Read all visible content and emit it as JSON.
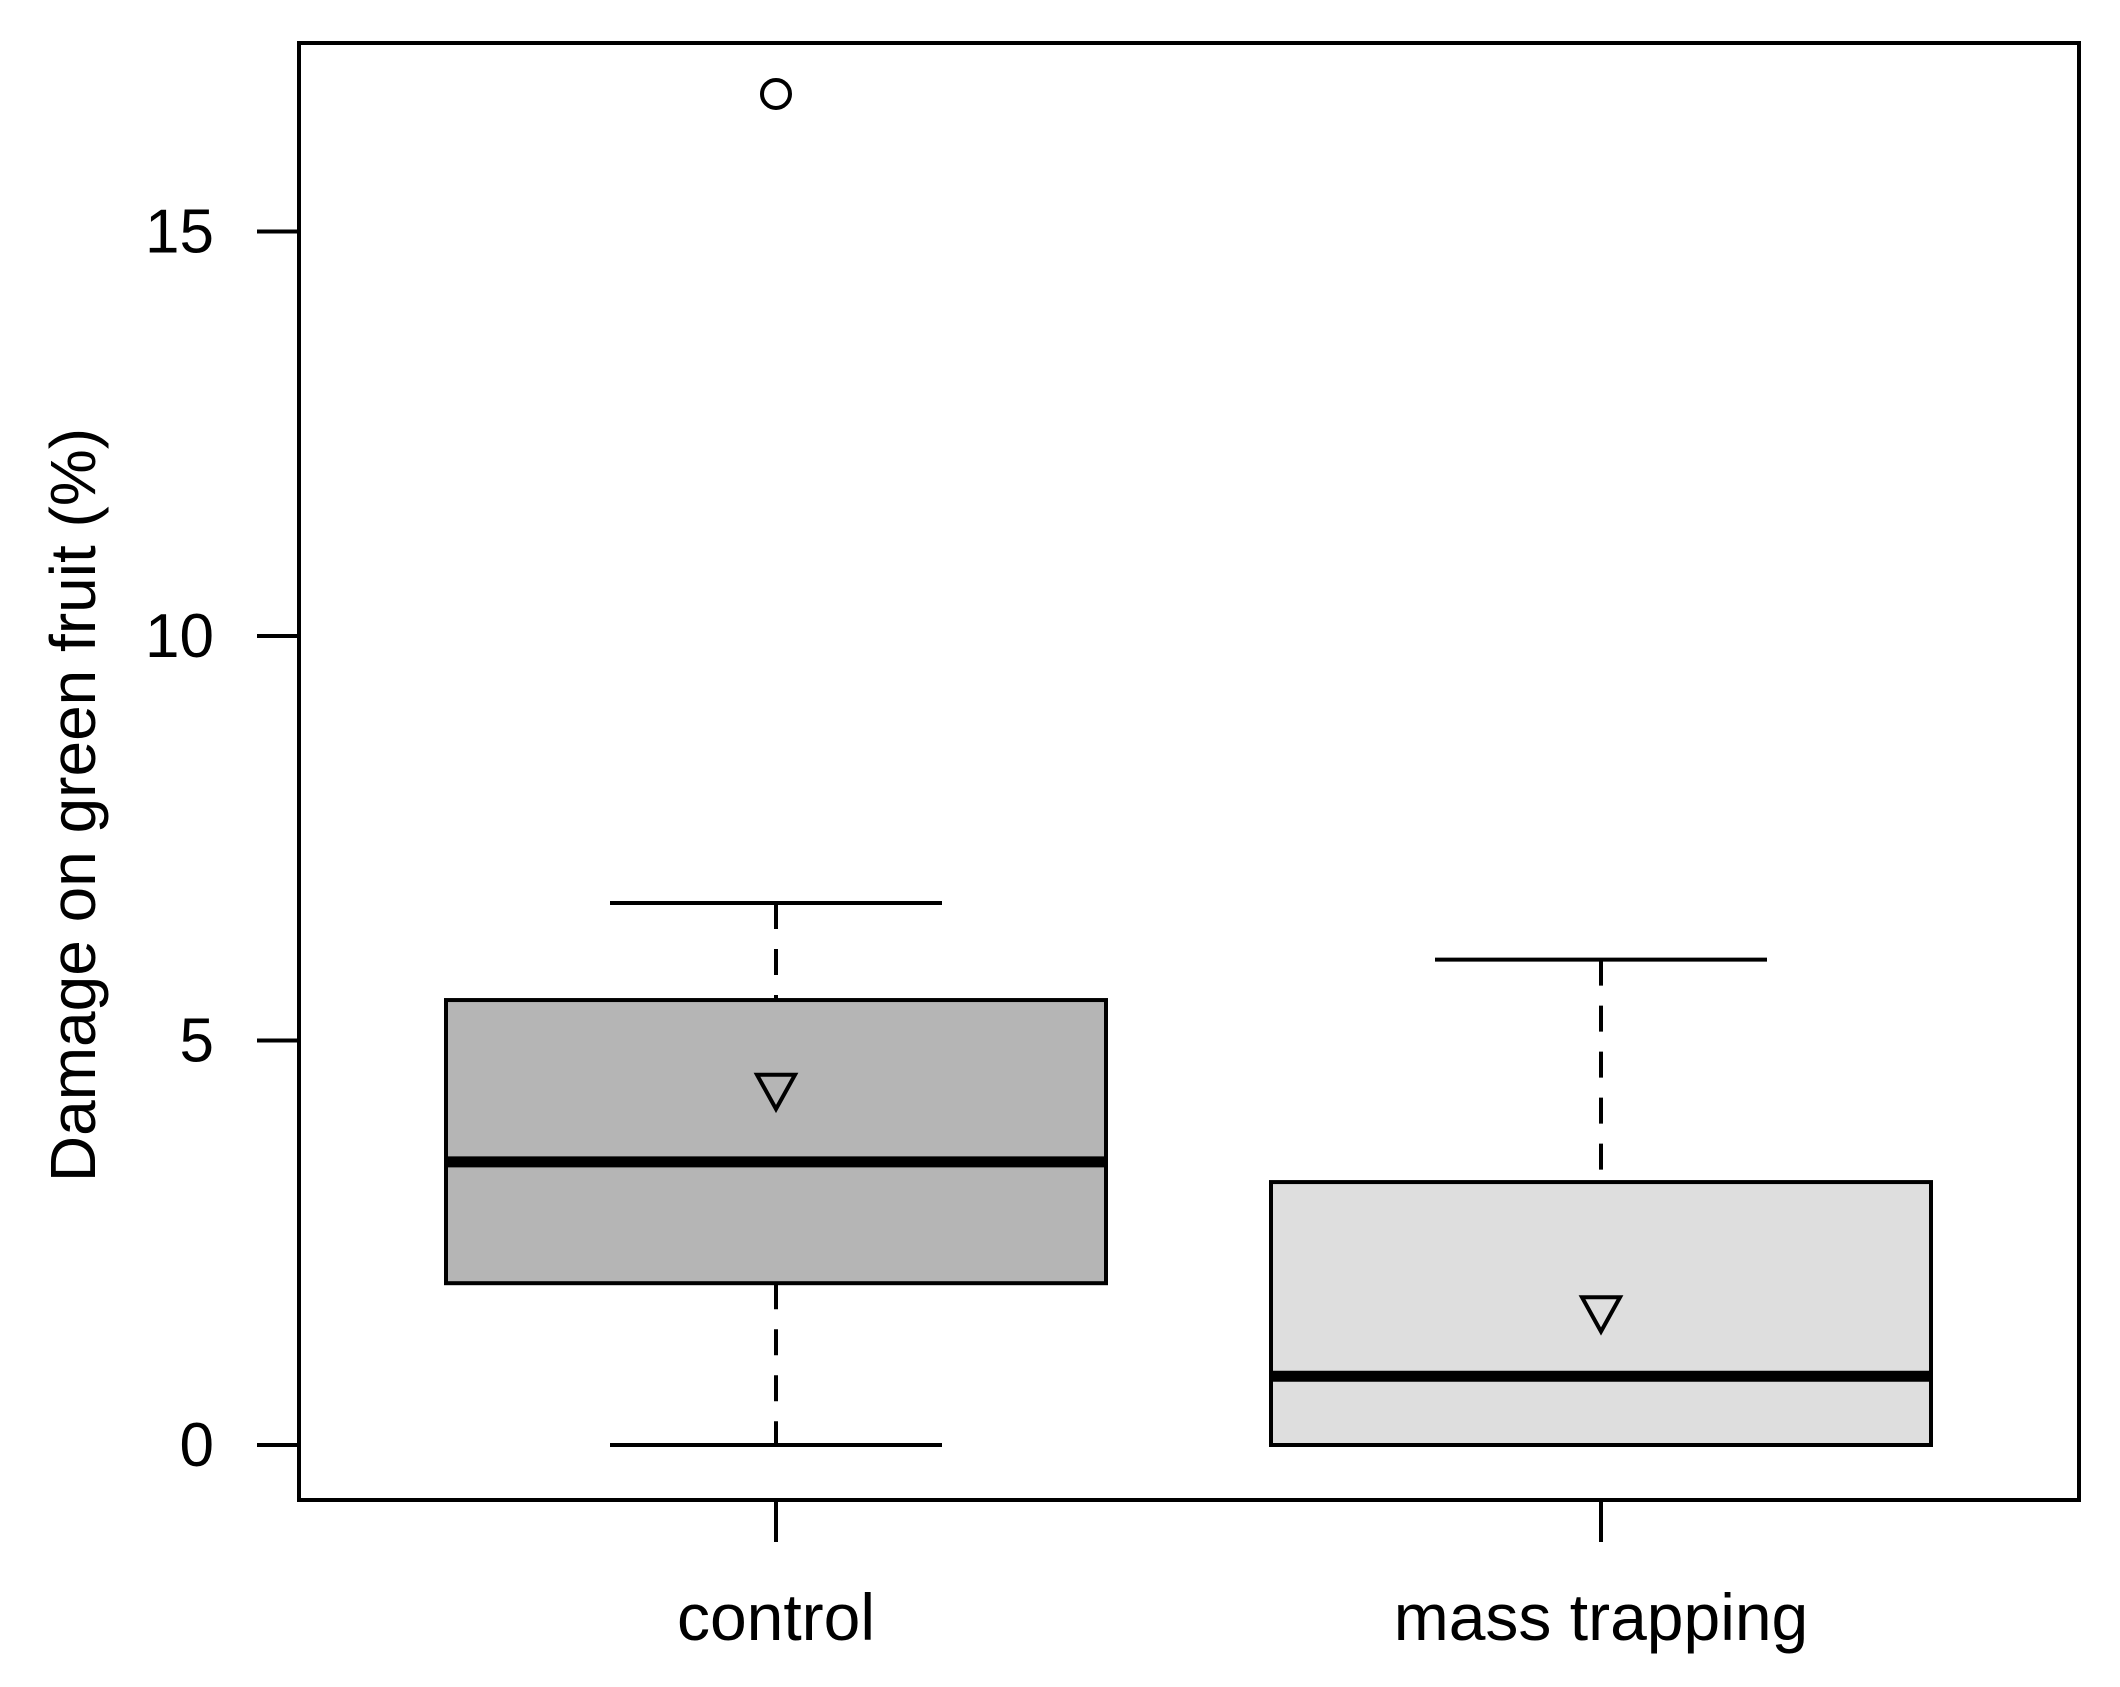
{
  "chart_data": {
    "type": "boxplot",
    "title": "",
    "xlabel": "",
    "ylabel": "Damage on green fruit (%)",
    "ylim": [
      -0.7,
      17.3
    ],
    "yticks": [
      0,
      5,
      10,
      15
    ],
    "ytick_labels": [
      "0",
      "5",
      "10",
      "15"
    ],
    "categories": [
      "control",
      "mass trapping"
    ],
    "boxes": [
      {
        "category": "control",
        "whisker_low": 0,
        "q1": 2.0,
        "median": 3.5,
        "q3": 5.5,
        "whisker_high": 6.7,
        "mean": 4.4,
        "outliers": [
          16.7
        ],
        "fill": "#b5b5b5"
      },
      {
        "category": "mass trapping",
        "whisker_low": 0,
        "q1": 0,
        "median": 0.85,
        "q3": 3.25,
        "whisker_high": 6.0,
        "mean": 1.65,
        "outliers": [],
        "fill": "#dedede"
      }
    ],
    "mean_marker": "open-down-triangle",
    "outlier_marker": "open-circle",
    "grid": false,
    "legend": "none"
  }
}
